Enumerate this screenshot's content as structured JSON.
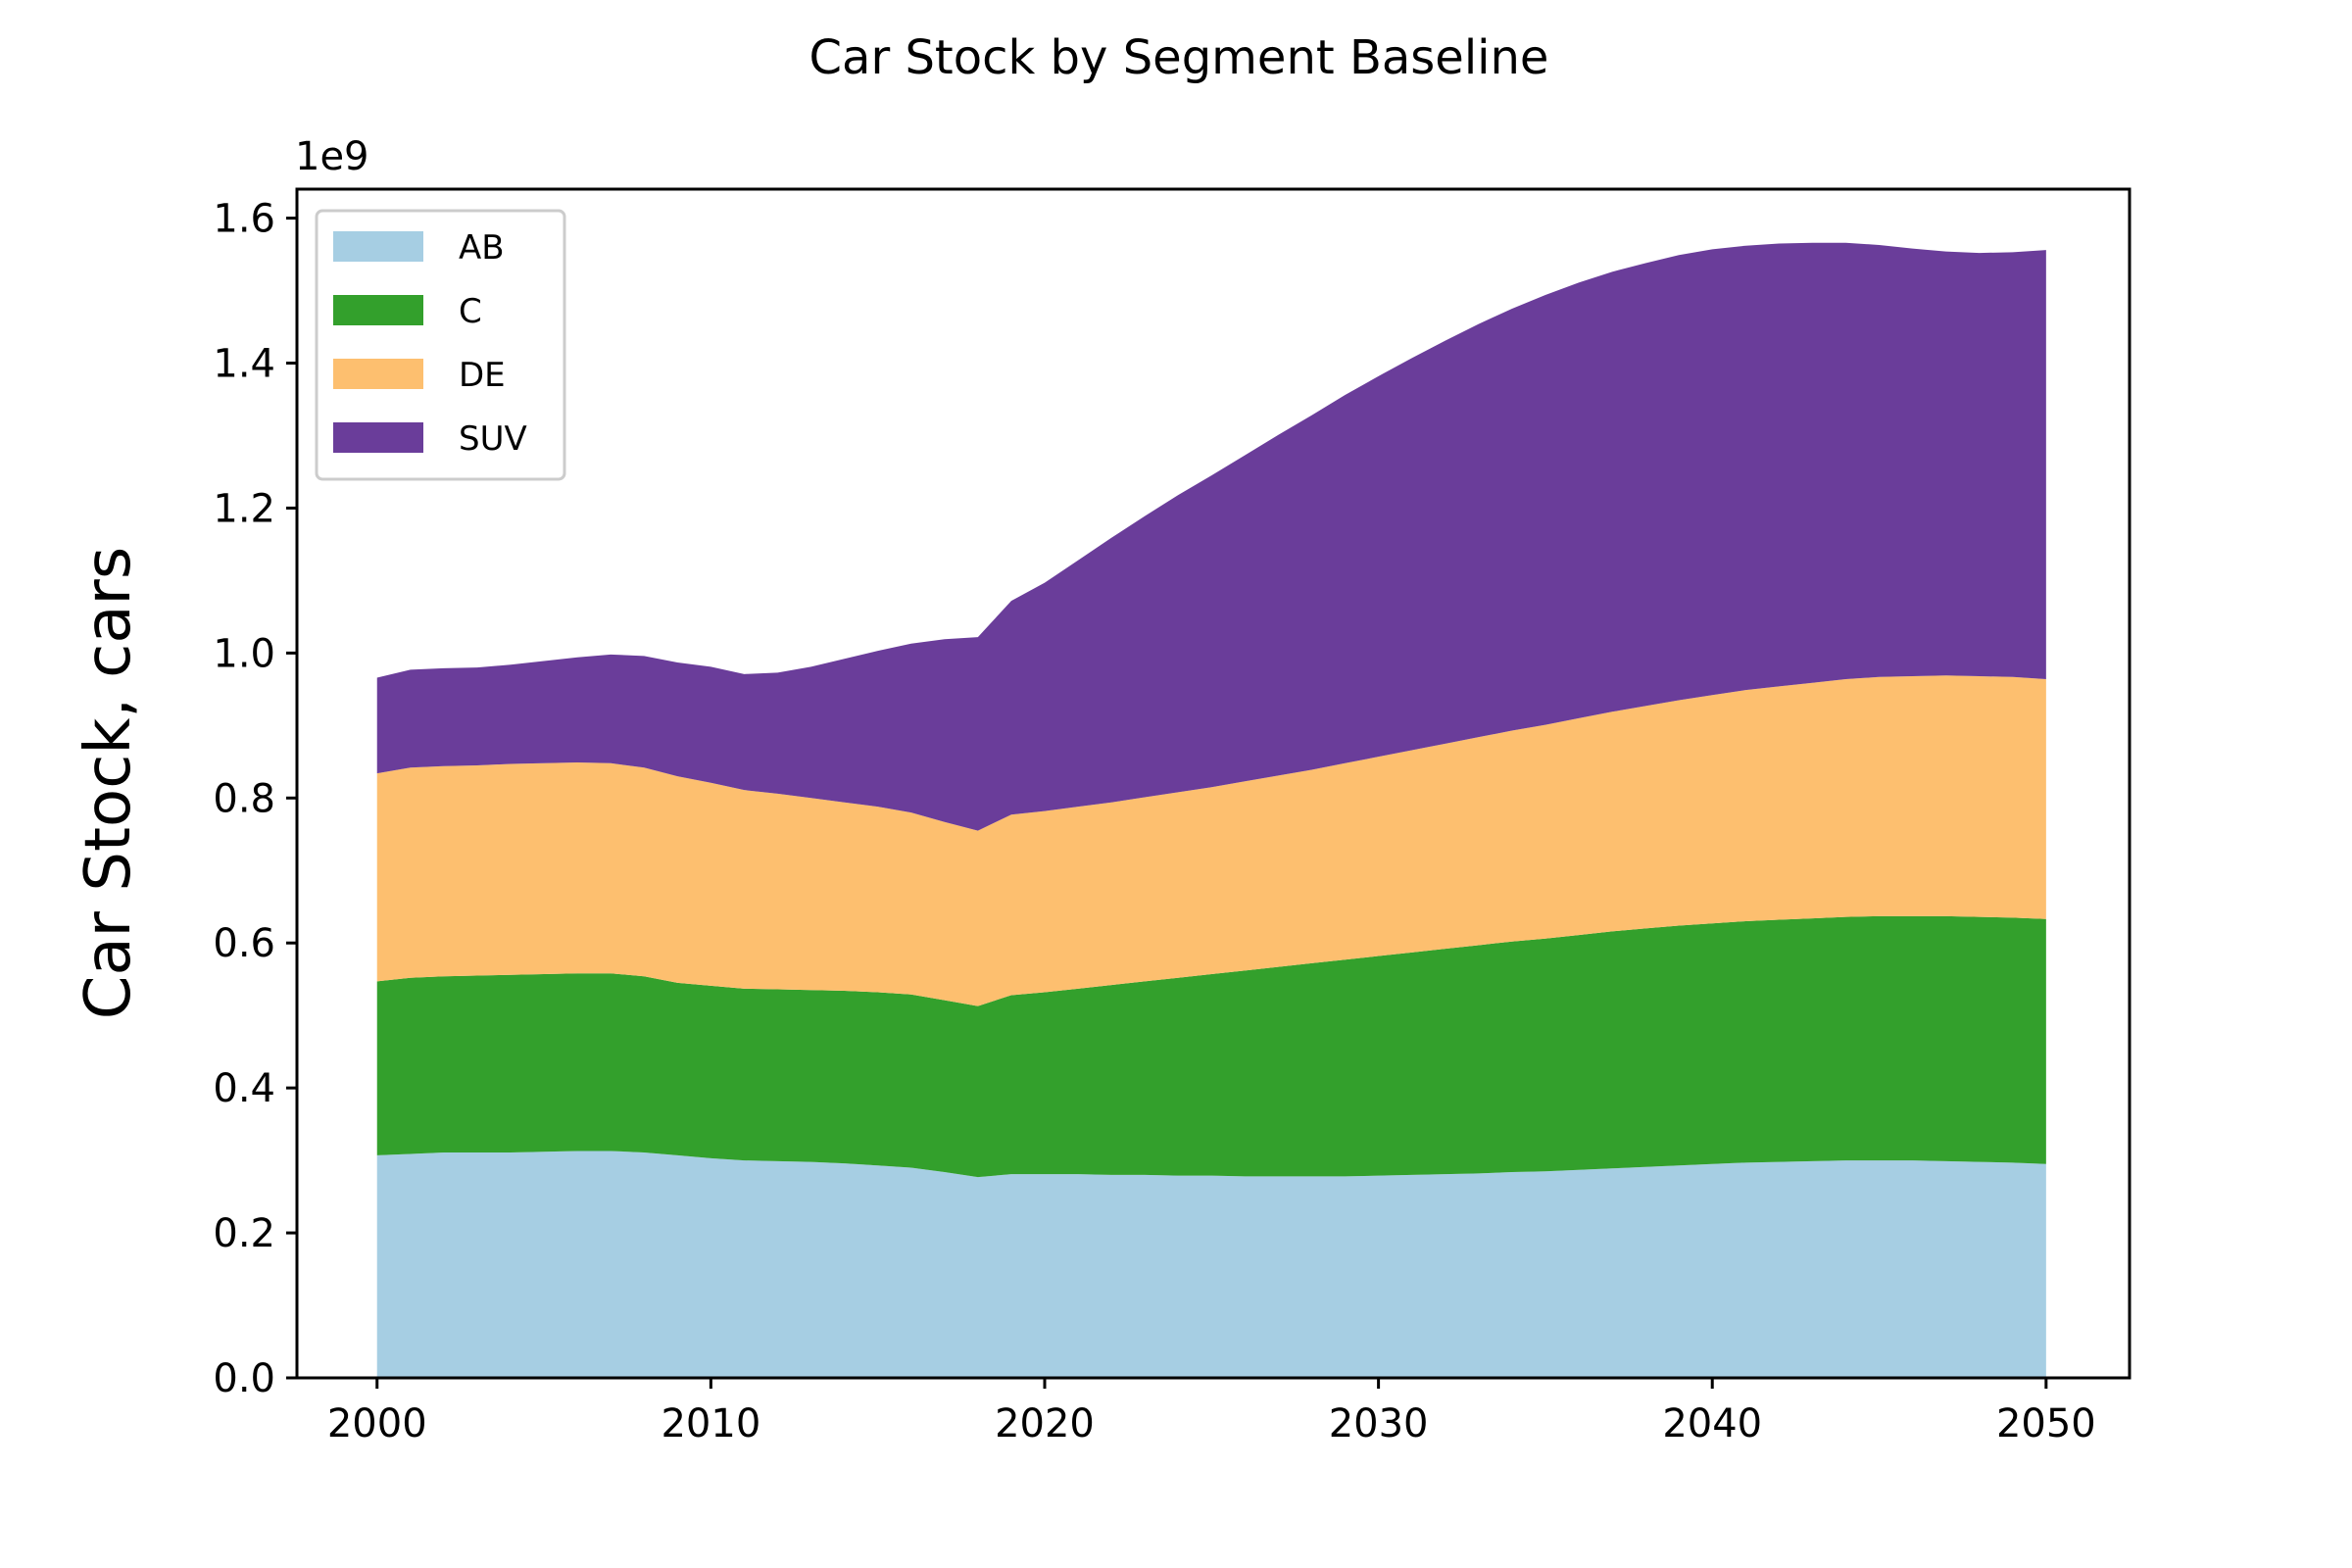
{
  "chart_data": {
    "type": "area",
    "stacked": true,
    "title": "Car Stock by Segment Baseline",
    "xlabel": "",
    "ylabel": "Car Stock, cars",
    "y_offset_label": "1e9",
    "y_scale_factor": 1000000000,
    "xlim": [
      1997.6,
      2052.5
    ],
    "ylim": [
      0,
      1.64
    ],
    "x_ticks": [
      "2000",
      "2010",
      "2020",
      "2030",
      "2040",
      "2050"
    ],
    "y_ticks": [
      "0.0",
      "0.2",
      "0.4",
      "0.6",
      "0.8",
      "1.0",
      "1.2",
      "1.4",
      "1.6"
    ],
    "grid": false,
    "legend_position": "upper-left",
    "x": [
      2000,
      2001,
      2002,
      2003,
      2004,
      2005,
      2006,
      2007,
      2008,
      2009,
      2010,
      2011,
      2012,
      2013,
      2014,
      2015,
      2016,
      2017,
      2018,
      2019,
      2020,
      2021,
      2022,
      2023,
      2024,
      2025,
      2026,
      2027,
      2028,
      2029,
      2030,
      2031,
      2032,
      2033,
      2034,
      2035,
      2036,
      2037,
      2038,
      2039,
      2040,
      2041,
      2042,
      2043,
      2044,
      2045,
      2046,
      2047,
      2048,
      2049,
      2050
    ],
    "series": [
      {
        "name": "AB",
        "color": "#a6cee3",
        "values": [
          0.307,
          0.309,
          0.311,
          0.311,
          0.311,
          0.312,
          0.313,
          0.313,
          0.311,
          0.307,
          0.303,
          0.3,
          0.299,
          0.298,
          0.296,
          0.293,
          0.29,
          0.284,
          0.277,
          0.281,
          0.281,
          0.281,
          0.28,
          0.28,
          0.279,
          0.279,
          0.278,
          0.278,
          0.278,
          0.278,
          0.279,
          0.28,
          0.281,
          0.282,
          0.284,
          0.285,
          0.287,
          0.289,
          0.291,
          0.293,
          0.295,
          0.297,
          0.298,
          0.299,
          0.3,
          0.3,
          0.3,
          0.299,
          0.298,
          0.297,
          0.295
        ]
      },
      {
        "name": "C",
        "color": "#33a02c",
        "values": [
          0.24,
          0.243,
          0.243,
          0.244,
          0.245,
          0.245,
          0.245,
          0.245,
          0.243,
          0.238,
          0.238,
          0.237,
          0.237,
          0.237,
          0.238,
          0.239,
          0.239,
          0.237,
          0.236,
          0.247,
          0.251,
          0.256,
          0.262,
          0.267,
          0.273,
          0.278,
          0.284,
          0.289,
          0.294,
          0.299,
          0.303,
          0.307,
          0.311,
          0.315,
          0.318,
          0.321,
          0.324,
          0.327,
          0.329,
          0.331,
          0.332,
          0.333,
          0.334,
          0.335,
          0.336,
          0.337,
          0.337,
          0.338,
          0.338,
          0.338,
          0.338
        ]
      },
      {
        "name": "DE",
        "color": "#fdbf6f",
        "values": [
          0.287,
          0.29,
          0.29,
          0.29,
          0.291,
          0.291,
          0.291,
          0.29,
          0.288,
          0.285,
          0.28,
          0.274,
          0.27,
          0.265,
          0.26,
          0.256,
          0.251,
          0.246,
          0.242,
          0.249,
          0.25,
          0.251,
          0.252,
          0.254,
          0.256,
          0.258,
          0.261,
          0.264,
          0.267,
          0.271,
          0.275,
          0.279,
          0.283,
          0.287,
          0.291,
          0.295,
          0.299,
          0.303,
          0.307,
          0.311,
          0.315,
          0.319,
          0.322,
          0.325,
          0.328,
          0.33,
          0.331,
          0.332,
          0.332,
          0.332,
          0.331
        ]
      },
      {
        "name": "SUV",
        "color": "#6a3d9a",
        "values": [
          0.132,
          0.135,
          0.135,
          0.135,
          0.137,
          0.141,
          0.145,
          0.15,
          0.154,
          0.157,
          0.16,
          0.16,
          0.167,
          0.181,
          0.198,
          0.215,
          0.233,
          0.252,
          0.267,
          0.295,
          0.315,
          0.34,
          0.365,
          0.388,
          0.41,
          0.43,
          0.45,
          0.47,
          0.489,
          0.508,
          0.525,
          0.541,
          0.556,
          0.57,
          0.582,
          0.593,
          0.601,
          0.607,
          0.611,
          0.614,
          0.615,
          0.613,
          0.611,
          0.607,
          0.602,
          0.596,
          0.59,
          0.585,
          0.584,
          0.586,
          0.592
        ]
      }
    ]
  }
}
